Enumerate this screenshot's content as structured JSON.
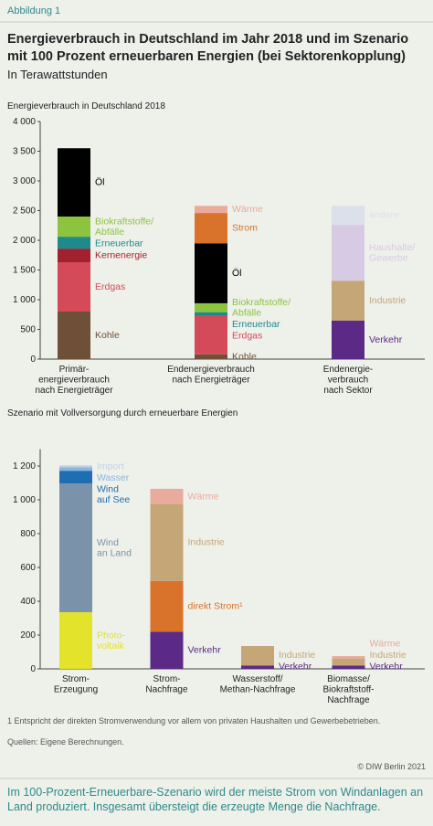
{
  "figure_label": "Abbildung 1",
  "title": "Energieverbrauch in Deutschland im Jahr 2018 und im Szenario\nmit 100 Prozent erneuerbaren Energien (bei Sektorenkopplung)",
  "subtitle": "In Terawattstunden",
  "footnote": "1  Entspricht der direkten Stromverwendung vor allem von privaten Haushalten und Gewerbebetrieben.",
  "source": "Quellen: Eigene Berechnungen.",
  "copyright": "© DIW Berlin 2021",
  "summary": "Im 100-Prozent-Erneuerbare-Szenario wird der meiste Strom von Windanlagen an\nLand produziert. Insgesamt übersteigt die erzeugte Menge die Nachfrage.",
  "chart_data": [
    {
      "type": "bar",
      "stacked": true,
      "title": "Energieverbrauch in Deutschland 2018",
      "categories": [
        "Primär-\nenergieverbrauch\nnach Energieträger",
        "Endenergieverbrauch\nnach Energieträger",
        "Endenergie-\nverbrauch\nnach Sektor"
      ],
      "ylim": [
        0,
        4000
      ],
      "yticks": [
        0,
        500,
        {
          "value": 1000,
          "label": "1 000"
        },
        {
          "value": 1500,
          "label": "1 500"
        },
        {
          "value": 2000,
          "label": "2 000"
        },
        {
          "value": 2500,
          "label": "2 500"
        },
        {
          "value": 3000,
          "label": "3 000"
        },
        {
          "value": 3500,
          "label": "3 500"
        },
        {
          "value": 4000,
          "label": "4 000"
        }
      ],
      "series": [
        {
          "name": "Kohle",
          "color": "#6e4f37",
          "values": [
            800,
            80,
            null
          ]
        },
        {
          "name": "Erdgas",
          "color": "#d44a58",
          "values": [
            830,
            650,
            null
          ]
        },
        {
          "name": "Kernenergie",
          "color": "#a3202e",
          "values": [
            230,
            null,
            null
          ]
        },
        {
          "name": "Erneuerbar",
          "color": "#1f8a8c",
          "values": [
            200,
            60,
            null
          ]
        },
        {
          "name": "Biokraftstoffe/\nAbfälle",
          "color": "#8cc43f",
          "values": [
            340,
            150,
            null
          ]
        },
        {
          "name": "Öl",
          "color": "#000000",
          "values": [
            1150,
            1010,
            null
          ]
        },
        {
          "name": "Strom",
          "color": "#d9722b",
          "values": [
            null,
            510,
            null
          ]
        },
        {
          "name": "Wärme",
          "color": "#e8ab9c",
          "values": [
            null,
            120,
            null
          ]
        },
        {
          "name": "Verkehr",
          "color": "#5b2a86",
          "values": [
            null,
            null,
            650
          ]
        },
        {
          "name": "Industrie",
          "color": "#c5a676",
          "values": [
            null,
            null,
            670
          ]
        },
        {
          "name": "Haushalte/\nGewerbe",
          "color": "#d7cbe4",
          "values": [
            null,
            null,
            940
          ]
        },
        {
          "name": "andere",
          "color": "#dce0ea",
          "values": [
            null,
            null,
            320
          ]
        }
      ]
    },
    {
      "type": "bar",
      "stacked": true,
      "title": "Szenario mit Vollversorgung durch erneuerbare Energien",
      "categories": [
        "Strom-\nErzeugung",
        "Strom-\nNachfrage",
        "Wasserstoff/\nMethan-Nachfrage",
        "Biomasse/\nBiokraftstoff-\nNachfrage"
      ],
      "ylim": [
        0,
        1300
      ],
      "yticks": [
        0,
        200,
        400,
        600,
        800,
        {
          "value": 1000,
          "label": "1 000"
        },
        {
          "value": 1200,
          "label": "1 200"
        }
      ],
      "series": [
        {
          "name": "Photo-\nvoltaik",
          "color": "#e2e32a",
          "values": [
            335,
            null,
            null,
            null
          ]
        },
        {
          "name": "Wind\nan Land",
          "color": "#7a92aa",
          "values": [
            762,
            null,
            null,
            null
          ]
        },
        {
          "name": "Wind\nauf See",
          "color": "#1f6db2",
          "values": [
            75,
            null,
            null,
            null
          ]
        },
        {
          "name": "Wasser",
          "color": "#8bb6dc",
          "values": [
            20,
            null,
            null,
            null
          ]
        },
        {
          "name": "Import",
          "color": "#c4d3e6",
          "values": [
            12,
            null,
            null,
            null
          ]
        },
        {
          "name": "Verkehr",
          "color": "#5b2a86",
          "values": [
            null,
            220,
            20,
            20
          ]
        },
        {
          "name": "direkt Strom¹",
          "color": "#d9722b",
          "values": [
            null,
            300,
            null,
            null
          ]
        },
        {
          "name": "Industrie",
          "color": "#c5a676",
          "values": [
            null,
            455,
            115,
            40
          ]
        },
        {
          "name": "Wärme",
          "color": "#e8ab9c",
          "values": [
            null,
            90,
            null,
            15
          ]
        }
      ]
    }
  ]
}
